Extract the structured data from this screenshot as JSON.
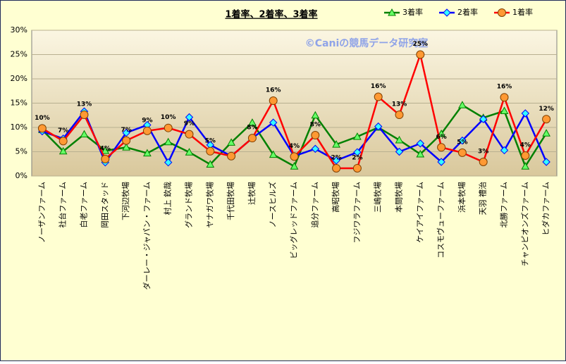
{
  "chart_data": {
    "type": "line",
    "title": "1着率、2着率、3着率",
    "annotation": "©Caniの競馬データ研究室",
    "categories": [
      "ノーザンファーム",
      "社台ファーム",
      "白老ファーム",
      "岡田スタッド",
      "下河辺牧場",
      "ダーレー・ジャパン・ファーム",
      "村上 欽哉",
      "グランド牧場",
      "ヤナガワ牧場",
      "千代田牧場",
      "辻牧場",
      "ノースヒルズ",
      "ビッグレッドファーム",
      "追分ファーム",
      "高昭牧場",
      "フジワラファーム",
      "三嶋牧場",
      "本間牧場",
      "ケイアイファーム",
      "コスモヴューファーム",
      "浜本牧場",
      "天羽 禮治",
      "北勝ファーム",
      "チャンピオンズファーム",
      "ヒダカファーム"
    ],
    "series": [
      {
        "name": "3着率",
        "color": "#008000",
        "marker": "triangle",
        "marker_fill": "#66ff66",
        "values": [
          9.5,
          5.1,
          8.6,
          5.2,
          5.9,
          4.7,
          7.0,
          4.9,
          2.4,
          6.9,
          11.0,
          4.4,
          2.0,
          12.5,
          6.5,
          8.1,
          10.0,
          7.4,
          4.5,
          8.7,
          14.6,
          12.0,
          13.4,
          2.0,
          8.8
        ]
      },
      {
        "name": "2着率",
        "color": "#0000ff",
        "marker": "diamond",
        "marker_fill": "#33ffff",
        "values": [
          9.2,
          7.7,
          13.3,
          2.8,
          8.9,
          10.5,
          2.8,
          12.1,
          6.4,
          4.1,
          7.8,
          11.0,
          4.1,
          5.6,
          3.2,
          4.9,
          10.2,
          5.0,
          6.7,
          2.9,
          7.3,
          11.7,
          5.3,
          12.9,
          2.9
        ]
      },
      {
        "name": "1着率",
        "color": "#ff0000",
        "marker": "circle",
        "marker_fill": "#ff9933",
        "values": [
          9.8,
          7.2,
          12.6,
          3.5,
          7.3,
          9.3,
          9.9,
          8.6,
          5.1,
          4.1,
          7.8,
          15.5,
          4.0,
          8.4,
          1.6,
          1.6,
          16.3,
          12.6,
          25.0,
          5.9,
          4.8,
          2.9,
          16.2,
          4.2,
          11.7
        ],
        "value_labels": [
          "10%",
          "7%",
          "13%",
          "4%",
          "7%",
          "9%",
          "10%",
          "9%",
          "5%",
          null,
          "8%",
          "16%",
          "4%",
          "8%",
          "2%",
          "2%",
          "16%",
          "13%",
          "25%",
          "6%",
          "5%",
          "3%",
          "16%",
          "4%",
          "12%"
        ]
      }
    ],
    "ylim": [
      0,
      30
    ],
    "yticks": [
      {
        "value": 0,
        "label": "0%"
      },
      {
        "value": 5,
        "label": "5%"
      },
      {
        "value": 10,
        "label": "10%"
      },
      {
        "value": 15,
        "label": "15%"
      },
      {
        "value": 20,
        "label": "20%"
      },
      {
        "value": 25,
        "label": "25%"
      },
      {
        "value": 30,
        "label": "30%"
      }
    ],
    "grid": true,
    "legend": "top-right"
  }
}
